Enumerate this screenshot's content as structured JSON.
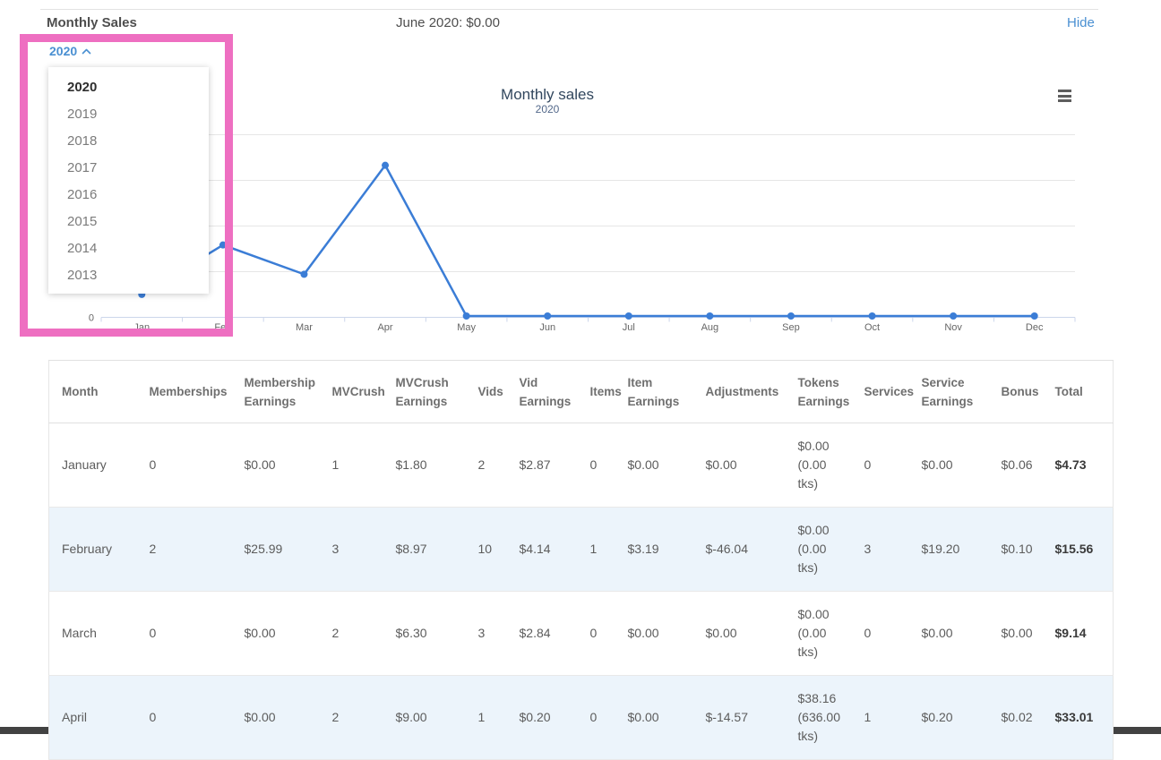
{
  "header": {
    "title": "Monthly Sales",
    "period_summary": "June 2020: $0.00",
    "hide_label": "Hide"
  },
  "year_dropdown": {
    "selected": "2020",
    "options": [
      "2020",
      "2019",
      "2018",
      "2017",
      "2016",
      "2015",
      "2014",
      "2013"
    ],
    "highlight_color": "#ee6fc1",
    "toggle_color": "#4a90d2"
  },
  "chart_data": {
    "type": "line",
    "title": "Monthly sales",
    "subtitle": "2020",
    "categories": [
      "Jan",
      "Feb",
      "Mar",
      "Apr",
      "May",
      "Jun",
      "Jul",
      "Aug",
      "Sep",
      "Oct",
      "Nov",
      "Dec"
    ],
    "series": [
      {
        "name": "Monthly sales",
        "values": [
          4.73,
          15.56,
          9.14,
          33.01,
          0,
          0,
          0,
          0,
          0,
          0,
          0,
          0
        ]
      }
    ],
    "ylim": [
      0,
      40
    ],
    "y_tick_interval": 10,
    "visible_y_labels": [
      "0"
    ],
    "grid": true,
    "legend": "none",
    "line_color": "#3b7dd6",
    "menu_icon": "hamburger-icon"
  },
  "table": {
    "columns": [
      "Month",
      "Memberships",
      "Membership Earnings",
      "MVCrush",
      "MVCrush Earnings",
      "Vids",
      "Vid Earnings",
      "Items",
      "Item Earnings",
      "Adjustments",
      "Tokens Earnings",
      "Services",
      "Service Earnings",
      "Bonus",
      "Total"
    ],
    "rows": [
      [
        "January",
        "0",
        "$0.00",
        "1",
        "$1.80",
        "2",
        "$2.87",
        "0",
        "$0.00",
        "$0.00",
        "$0.00 (0.00 tks)",
        "0",
        "$0.00",
        "$0.06",
        "$4.73"
      ],
      [
        "February",
        "2",
        "$25.99",
        "3",
        "$8.97",
        "10",
        "$4.14",
        "1",
        "$3.19",
        "$-46.04",
        "$0.00 (0.00 tks)",
        "3",
        "$19.20",
        "$0.10",
        "$15.56"
      ],
      [
        "March",
        "0",
        "$0.00",
        "2",
        "$6.30",
        "3",
        "$2.84",
        "0",
        "$0.00",
        "$0.00",
        "$0.00 (0.00 tks)",
        "0",
        "$0.00",
        "$0.00",
        "$9.14"
      ],
      [
        "April",
        "0",
        "$0.00",
        "2",
        "$9.00",
        "1",
        "$0.20",
        "0",
        "$0.00",
        "$-14.57",
        "$38.16 (636.00 tks)",
        "1",
        "$0.20",
        "$0.02",
        "$33.01"
      ]
    ],
    "alt_row_bg": "#ecf4fb"
  }
}
